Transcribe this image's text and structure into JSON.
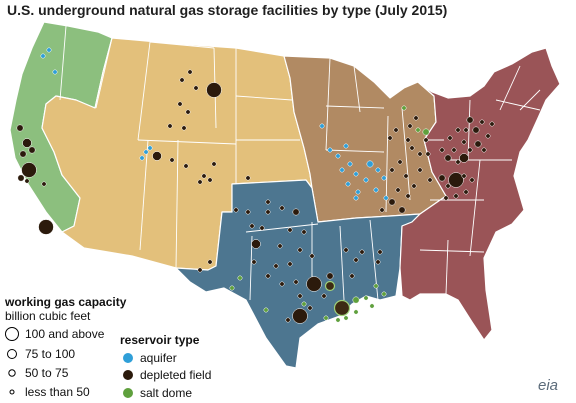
{
  "title": "U.S. underground natural gas storage facilities by type (July 2015)",
  "region_colors": {
    "pacific": "#8cbf7e",
    "mountain": "#e3c07b",
    "midwest": "#b18a63",
    "south_central": "#4d7690",
    "east": "#9a5457",
    "border": "#ffffff"
  },
  "legend": {
    "capacity_title": "working gas capacity",
    "capacity_subtitle": "billion cubic feet",
    "capacity_items": [
      {
        "label": "100 and above",
        "size": "large"
      },
      {
        "label": "75 to 100",
        "size": "medium-large"
      },
      {
        "label": "50 to 75",
        "size": "medium"
      },
      {
        "label": "less than 50",
        "size": "small"
      }
    ],
    "type_title": "reservoir type",
    "type_items": [
      {
        "label": "aquifer",
        "color": "#2f9fd8"
      },
      {
        "label": "depleted field",
        "color": "#2b1a0c"
      },
      {
        "label": "salt dome",
        "color": "#5fa03d"
      }
    ]
  },
  "logo": "eia"
}
